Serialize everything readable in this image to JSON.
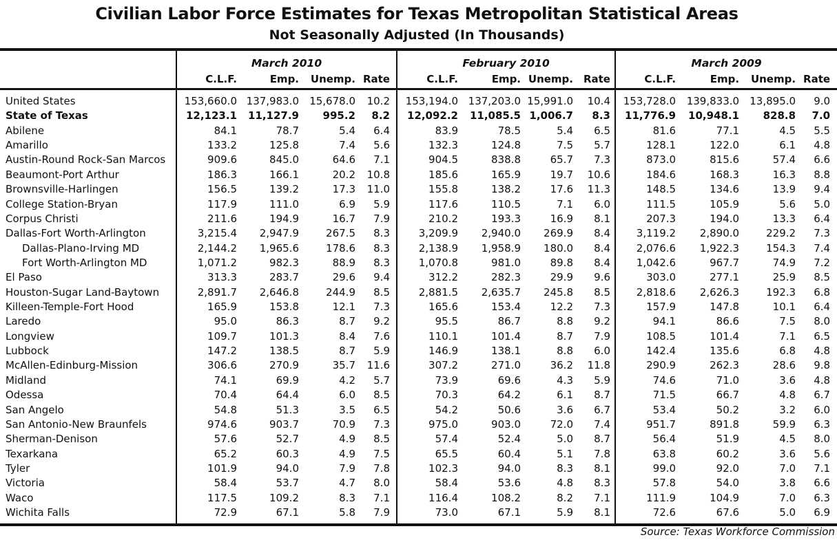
{
  "title": "Civilian Labor Force Estimates for Texas Metropolitan Statistical Areas",
  "subtitle": "Not Seasonally Adjusted (In Thousands)",
  "periods": [
    "March 2010",
    "February 2010",
    "March 2009"
  ],
  "columns": [
    "C.L.F.",
    "Emp.",
    "Unemp.",
    "Rate"
  ],
  "rows": [
    {
      "name": "United States",
      "bold": false,
      "indent": false,
      "v": [
        [
          "153,660.0",
          "137,983.0",
          "15,678.0",
          "10.2"
        ],
        [
          "153,194.0",
          "137,203.0",
          "15,991.0",
          "10.4"
        ],
        [
          "153,728.0",
          "139,833.0",
          "13,895.0",
          "9.0"
        ]
      ]
    },
    {
      "name": "State of Texas",
      "bold": true,
      "indent": false,
      "v": [
        [
          "12,123.1",
          "11,127.9",
          "995.2",
          "8.2"
        ],
        [
          "12,092.2",
          "11,085.5",
          "1,006.7",
          "8.3"
        ],
        [
          "11,776.9",
          "10,948.1",
          "828.8",
          "7.0"
        ]
      ]
    },
    {
      "name": "Abilene",
      "v": [
        [
          "84.1",
          "78.7",
          "5.4",
          "6.4"
        ],
        [
          "83.9",
          "78.5",
          "5.4",
          "6.5"
        ],
        [
          "81.6",
          "77.1",
          "4.5",
          "5.5"
        ]
      ]
    },
    {
      "name": "Amarillo",
      "v": [
        [
          "133.2",
          "125.8",
          "7.4",
          "5.6"
        ],
        [
          "132.3",
          "124.8",
          "7.5",
          "5.7"
        ],
        [
          "128.1",
          "122.0",
          "6.1",
          "4.8"
        ]
      ]
    },
    {
      "name": "Austin-Round Rock-San Marcos",
      "v": [
        [
          "909.6",
          "845.0",
          "64.6",
          "7.1"
        ],
        [
          "904.5",
          "838.8",
          "65.7",
          "7.3"
        ],
        [
          "873.0",
          "815.6",
          "57.4",
          "6.6"
        ]
      ]
    },
    {
      "name": "Beaumont-Port Arthur",
      "v": [
        [
          "186.3",
          "166.1",
          "20.2",
          "10.8"
        ],
        [
          "185.6",
          "165.9",
          "19.7",
          "10.6"
        ],
        [
          "184.6",
          "168.3",
          "16.3",
          "8.8"
        ]
      ]
    },
    {
      "name": "Brownsville-Harlingen",
      "v": [
        [
          "156.5",
          "139.2",
          "17.3",
          "11.0"
        ],
        [
          "155.8",
          "138.2",
          "17.6",
          "11.3"
        ],
        [
          "148.5",
          "134.6",
          "13.9",
          "9.4"
        ]
      ]
    },
    {
      "name": "College Station-Bryan",
      "v": [
        [
          "117.9",
          "111.0",
          "6.9",
          "5.9"
        ],
        [
          "117.6",
          "110.5",
          "7.1",
          "6.0"
        ],
        [
          "111.5",
          "105.9",
          "5.6",
          "5.0"
        ]
      ]
    },
    {
      "name": "Corpus Christi",
      "v": [
        [
          "211.6",
          "194.9",
          "16.7",
          "7.9"
        ],
        [
          "210.2",
          "193.3",
          "16.9",
          "8.1"
        ],
        [
          "207.3",
          "194.0",
          "13.3",
          "6.4"
        ]
      ]
    },
    {
      "name": "Dallas-Fort Worth-Arlington",
      "v": [
        [
          "3,215.4",
          "2,947.9",
          "267.5",
          "8.3"
        ],
        [
          "3,209.9",
          "2,940.0",
          "269.9",
          "8.4"
        ],
        [
          "3,119.2",
          "2,890.0",
          "229.2",
          "7.3"
        ]
      ]
    },
    {
      "name": "Dallas-Plano-Irving MD",
      "indent": true,
      "v": [
        [
          "2,144.2",
          "1,965.6",
          "178.6",
          "8.3"
        ],
        [
          "2,138.9",
          "1,958.9",
          "180.0",
          "8.4"
        ],
        [
          "2,076.6",
          "1,922.3",
          "154.3",
          "7.4"
        ]
      ]
    },
    {
      "name": "Fort Worth-Arlington MD",
      "indent": true,
      "v": [
        [
          "1,071.2",
          "982.3",
          "88.9",
          "8.3"
        ],
        [
          "1,070.8",
          "981.0",
          "89.8",
          "8.4"
        ],
        [
          "1,042.6",
          "967.7",
          "74.9",
          "7.2"
        ]
      ]
    },
    {
      "name": "El Paso",
      "v": [
        [
          "313.3",
          "283.7",
          "29.6",
          "9.4"
        ],
        [
          "312.2",
          "282.3",
          "29.9",
          "9.6"
        ],
        [
          "303.0",
          "277.1",
          "25.9",
          "8.5"
        ]
      ]
    },
    {
      "name": "Houston-Sugar Land-Baytown",
      "v": [
        [
          "2,891.7",
          "2,646.8",
          "244.9",
          "8.5"
        ],
        [
          "2,881.5",
          "2,635.7",
          "245.8",
          "8.5"
        ],
        [
          "2,818.6",
          "2,626.3",
          "192.3",
          "6.8"
        ]
      ]
    },
    {
      "name": "Killeen-Temple-Fort Hood",
      "v": [
        [
          "165.9",
          "153.8",
          "12.1",
          "7.3"
        ],
        [
          "165.6",
          "153.4",
          "12.2",
          "7.3"
        ],
        [
          "157.9",
          "147.8",
          "10.1",
          "6.4"
        ]
      ]
    },
    {
      "name": "Laredo",
      "v": [
        [
          "95.0",
          "86.3",
          "8.7",
          "9.2"
        ],
        [
          "95.5",
          "86.7",
          "8.8",
          "9.2"
        ],
        [
          "94.1",
          "86.6",
          "7.5",
          "8.0"
        ]
      ]
    },
    {
      "name": "Longview",
      "v": [
        [
          "109.7",
          "101.3",
          "8.4",
          "7.6"
        ],
        [
          "110.1",
          "101.4",
          "8.7",
          "7.9"
        ],
        [
          "108.5",
          "101.4",
          "7.1",
          "6.5"
        ]
      ]
    },
    {
      "name": "Lubbock",
      "v": [
        [
          "147.2",
          "138.5",
          "8.7",
          "5.9"
        ],
        [
          "146.9",
          "138.1",
          "8.8",
          "6.0"
        ],
        [
          "142.4",
          "135.6",
          "6.8",
          "4.8"
        ]
      ]
    },
    {
      "name": "McAllen-Edinburg-Mission",
      "v": [
        [
          "306.6",
          "270.9",
          "35.7",
          "11.6"
        ],
        [
          "307.2",
          "271.0",
          "36.2",
          "11.8"
        ],
        [
          "290.9",
          "262.3",
          "28.6",
          "9.8"
        ]
      ]
    },
    {
      "name": "Midland",
      "v": [
        [
          "74.1",
          "69.9",
          "4.2",
          "5.7"
        ],
        [
          "73.9",
          "69.6",
          "4.3",
          "5.9"
        ],
        [
          "74.6",
          "71.0",
          "3.6",
          "4.8"
        ]
      ]
    },
    {
      "name": "Odessa",
      "v": [
        [
          "70.4",
          "64.4",
          "6.0",
          "8.5"
        ],
        [
          "70.3",
          "64.2",
          "6.1",
          "8.7"
        ],
        [
          "71.5",
          "66.7",
          "4.8",
          "6.7"
        ]
      ]
    },
    {
      "name": "San Angelo",
      "v": [
        [
          "54.8",
          "51.3",
          "3.5",
          "6.5"
        ],
        [
          "54.2",
          "50.6",
          "3.6",
          "6.7"
        ],
        [
          "53.4",
          "50.2",
          "3.2",
          "6.0"
        ]
      ]
    },
    {
      "name": "San Antonio-New Braunfels",
      "v": [
        [
          "974.6",
          "903.7",
          "70.9",
          "7.3"
        ],
        [
          "975.0",
          "903.0",
          "72.0",
          "7.4"
        ],
        [
          "951.7",
          "891.8",
          "59.9",
          "6.3"
        ]
      ]
    },
    {
      "name": "Sherman-Denison",
      "v": [
        [
          "57.6",
          "52.7",
          "4.9",
          "8.5"
        ],
        [
          "57.4",
          "52.4",
          "5.0",
          "8.7"
        ],
        [
          "56.4",
          "51.9",
          "4.5",
          "8.0"
        ]
      ]
    },
    {
      "name": "Texarkana",
      "v": [
        [
          "65.2",
          "60.3",
          "4.9",
          "7.5"
        ],
        [
          "65.5",
          "60.4",
          "5.1",
          "7.8"
        ],
        [
          "63.8",
          "60.2",
          "3.6",
          "5.6"
        ]
      ]
    },
    {
      "name": "Tyler",
      "v": [
        [
          "101.9",
          "94.0",
          "7.9",
          "7.8"
        ],
        [
          "102.3",
          "94.0",
          "8.3",
          "8.1"
        ],
        [
          "99.0",
          "92.0",
          "7.0",
          "7.1"
        ]
      ]
    },
    {
      "name": "Victoria",
      "v": [
        [
          "58.4",
          "53.7",
          "4.7",
          "8.0"
        ],
        [
          "58.4",
          "53.6",
          "4.8",
          "8.3"
        ],
        [
          "57.8",
          "54.0",
          "3.8",
          "6.6"
        ]
      ]
    },
    {
      "name": "Waco",
      "v": [
        [
          "117.5",
          "109.2",
          "8.3",
          "7.1"
        ],
        [
          "116.4",
          "108.2",
          "8.2",
          "7.1"
        ],
        [
          "111.9",
          "104.9",
          "7.0",
          "6.3"
        ]
      ]
    },
    {
      "name": "Wichita Falls",
      "v": [
        [
          "72.9",
          "67.1",
          "5.8",
          "7.9"
        ],
        [
          "73.0",
          "67.1",
          "5.9",
          "8.1"
        ],
        [
          "72.6",
          "67.6",
          "5.0",
          "6.9"
        ]
      ]
    }
  ],
  "source": "Source: Texas Workforce Commission"
}
